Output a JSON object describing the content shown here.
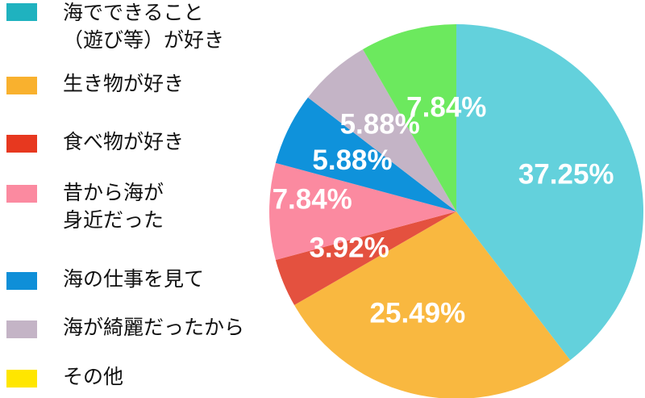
{
  "chart_data": {
    "type": "pie",
    "title": "",
    "slices": [
      {
        "label": "海でできること\n（遊び等）が好き",
        "value": 37.25,
        "display": "37.25%",
        "color": "#63d1dc"
      },
      {
        "label": "生き物が好き",
        "value": 25.49,
        "display": "25.49%",
        "color": "#f9b840"
      },
      {
        "label": "食べ物が好き",
        "value": 3.92,
        "display": "3.92%",
        "color": "#e4513f"
      },
      {
        "label": "昔から海が\n身近だった",
        "value": 7.84,
        "display": "7.84%",
        "color": "#fb8aa0"
      },
      {
        "label": "海の仕事を見て",
        "value": 5.88,
        "display": "5.88%",
        "color": "#0f92db"
      },
      {
        "label": "海が綺麗だったから",
        "value": 5.88,
        "display": "5.88%",
        "color": "#c4b4c6"
      },
      {
        "label": "その他",
        "value": 0,
        "display": "",
        "color": "#ffe600"
      },
      {
        "label": "",
        "value": 7.84,
        "display": "7.84%",
        "color": "#6ce95e"
      }
    ],
    "legend_placement": "left",
    "legend_swatch_colors": [
      "#1fb2bf",
      "#f9b12e",
      "#e7381f",
      "#fb8aa0",
      "#0f8fd8",
      "#c4b4c6",
      "#ffe600"
    ]
  }
}
